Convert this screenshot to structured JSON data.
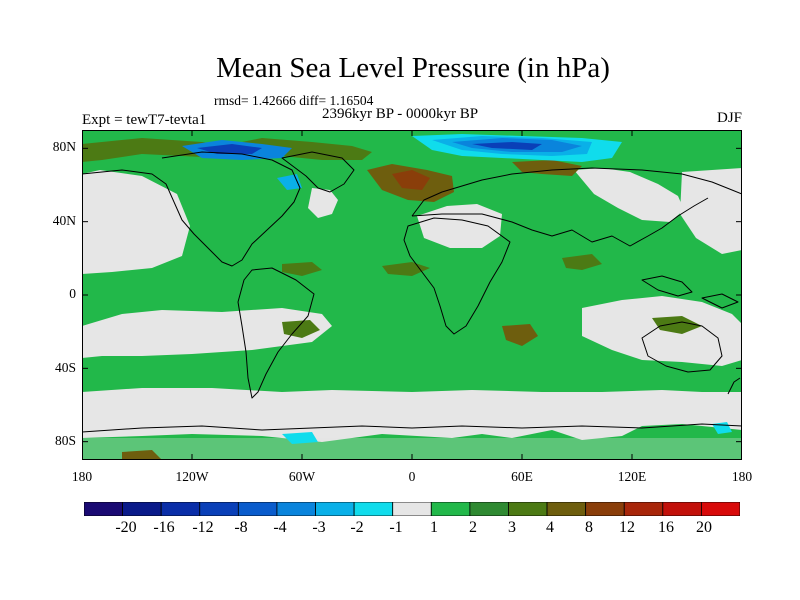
{
  "figure": {
    "title": "Mean Sea Level Pressure (in hPa)",
    "stats": "rmsd= 1.42666 diff= 1.16504",
    "experiment": "Expt = tewT7-tevta1",
    "period": "2396kyr BP - 0000kyr BP",
    "season": "DJF"
  },
  "axes": {
    "lat_labels": [
      "80N",
      "40N",
      "0",
      "40S",
      "80S"
    ],
    "lat_values": [
      80,
      40,
      0,
      -40,
      -80
    ],
    "lon_labels": [
      "180",
      "120W",
      "60W",
      "0",
      "60E",
      "120E",
      "180"
    ],
    "lon_values": [
      -180,
      -120,
      -60,
      0,
      60,
      120,
      180
    ],
    "lat_range": [
      -90,
      90
    ],
    "lon_range": [
      -180,
      180
    ]
  },
  "colorbar": {
    "labels": [
      "-20",
      "-16",
      "-12",
      "-8",
      "-4",
      "-3",
      "-2",
      "-1",
      "1",
      "2",
      "3",
      "4",
      "8",
      "12",
      "16",
      "20"
    ],
    "colors": [
      "#1a0a73",
      "#0a1a8a",
      "#0a2ea8",
      "#0a40b8",
      "#0a5ccc",
      "#0a84dc",
      "#0ab0e8",
      "#10dcec",
      "#e6e6e6",
      "#22b84a",
      "#2f8a32",
      "#4c7a14",
      "#6e5e0e",
      "#8a3e0a",
      "#a8260a",
      "#c2100a",
      "#d80a0a"
    ]
  },
  "map": {
    "background_value": "1 to 2",
    "colors": {
      "green": "#22b84a",
      "grey": "#e6e6e6",
      "olive": "#4c7a14",
      "brown": "#6e5e0e",
      "darkbrown": "#8a3e0a",
      "cyan": "#10dcec",
      "lightblue": "#0ab0e8",
      "blue": "#0a84dc",
      "darkblue": "#0a40b8"
    }
  }
}
